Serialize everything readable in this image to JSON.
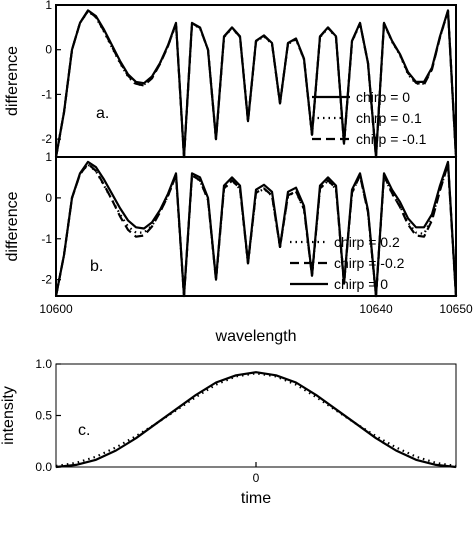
{
  "figure": {
    "colors": {
      "ink": "#000000",
      "background": "#ffffff"
    }
  },
  "chart_data": [
    {
      "type": "line",
      "panel_label": "a.",
      "xlabel": "",
      "ylabel": "difference",
      "xlim": [
        10600,
        10650
      ],
      "ylim": [
        -2.4,
        1.0
      ],
      "yticks": [
        1,
        0,
        -1,
        -2
      ],
      "x": [
        10600,
        10601,
        10602,
        10603,
        10604,
        10605,
        10606,
        10607,
        10608,
        10609,
        10610,
        10611,
        10612,
        10613,
        10614,
        10615,
        10616,
        10617,
        10618,
        10619,
        10620,
        10621,
        10622,
        10623,
        10624,
        10625,
        10626,
        10627,
        10628,
        10629,
        10630,
        10631,
        10632,
        10633,
        10634,
        10635,
        10636,
        10637,
        10638,
        10639,
        10640,
        10641,
        10642,
        10643,
        10644,
        10645,
        10646,
        10647,
        10648,
        10649,
        10650
      ],
      "legend": {
        "placement": "lower-right"
      },
      "series": [
        {
          "name": "chirp = 0",
          "dash": "solid",
          "values": [
            -2.4,
            -1.4,
            0.0,
            0.6,
            0.88,
            0.75,
            0.45,
            0.1,
            -0.25,
            -0.55,
            -0.72,
            -0.75,
            -0.6,
            -0.3,
            0.1,
            0.6,
            -2.4,
            0.6,
            0.5,
            0.0,
            -2.0,
            0.3,
            0.5,
            0.3,
            -1.6,
            0.2,
            0.32,
            0.15,
            -1.2,
            0.15,
            0.25,
            -0.2,
            -1.9,
            0.3,
            0.5,
            0.3,
            -2.1,
            0.2,
            0.6,
            -0.3,
            -2.4,
            0.6,
            0.2,
            -0.1,
            -0.5,
            -0.72,
            -0.72,
            -0.4,
            0.3,
            0.88,
            -2.4
          ]
        },
        {
          "name": "chirp = 0.1",
          "dash": "dotted",
          "values": [
            -2.4,
            -1.4,
            0.0,
            0.6,
            0.86,
            0.72,
            0.4,
            0.05,
            -0.3,
            -0.6,
            -0.78,
            -0.78,
            -0.62,
            -0.3,
            0.08,
            0.58,
            -2.4,
            0.58,
            0.48,
            0.0,
            -2.0,
            0.28,
            0.48,
            0.28,
            -1.6,
            0.18,
            0.3,
            0.13,
            -1.2,
            0.13,
            0.23,
            -0.22,
            -1.9,
            0.28,
            0.48,
            0.28,
            -2.1,
            0.18,
            0.58,
            -0.3,
            -2.4,
            0.58,
            0.18,
            -0.12,
            -0.55,
            -0.76,
            -0.76,
            -0.42,
            0.28,
            0.86,
            -2.4
          ]
        },
        {
          "name": "chirp = -0.1",
          "dash": "dashed",
          "values": [
            -2.4,
            -1.4,
            0.0,
            0.6,
            0.87,
            0.73,
            0.42,
            0.07,
            -0.28,
            -0.58,
            -0.76,
            -0.8,
            -0.64,
            -0.32,
            0.08,
            0.59,
            -2.4,
            0.59,
            0.49,
            0.0,
            -2.0,
            0.29,
            0.49,
            0.29,
            -1.6,
            0.19,
            0.31,
            0.14,
            -1.2,
            0.14,
            0.24,
            -0.21,
            -1.9,
            0.29,
            0.49,
            0.29,
            -2.1,
            0.19,
            0.59,
            -0.3,
            -2.4,
            0.59,
            0.19,
            -0.11,
            -0.52,
            -0.74,
            -0.78,
            -0.44,
            0.28,
            0.87,
            -2.4
          ]
        }
      ]
    },
    {
      "type": "line",
      "panel_label": "b.",
      "xlabel": "wavelength",
      "ylabel": "difference",
      "xlim": [
        10600,
        10650
      ],
      "ylim": [
        -2.4,
        1.0
      ],
      "yticks": [
        1,
        0,
        -1,
        -2
      ],
      "xticks": [
        10600,
        10640,
        10650
      ],
      "x": [
        10600,
        10601,
        10602,
        10603,
        10604,
        10605,
        10606,
        10607,
        10608,
        10609,
        10610,
        10611,
        10612,
        10613,
        10614,
        10615,
        10616,
        10617,
        10618,
        10619,
        10620,
        10621,
        10622,
        10623,
        10624,
        10625,
        10626,
        10627,
        10628,
        10629,
        10630,
        10631,
        10632,
        10633,
        10634,
        10635,
        10636,
        10637,
        10638,
        10639,
        10640,
        10641,
        10642,
        10643,
        10644,
        10645,
        10646,
        10647,
        10648,
        10649,
        10650
      ],
      "legend": {
        "placement": "lower-right"
      },
      "series": [
        {
          "name": "chirp = 0.2",
          "dash": "dotted",
          "values": [
            -2.4,
            -1.4,
            0.0,
            0.58,
            0.82,
            0.65,
            0.3,
            -0.05,
            -0.4,
            -0.7,
            -0.85,
            -0.85,
            -0.68,
            -0.35,
            0.05,
            0.55,
            -2.4,
            0.55,
            0.42,
            -0.05,
            -2.0,
            0.22,
            0.42,
            0.22,
            -1.6,
            0.12,
            0.22,
            0.05,
            -1.2,
            0.05,
            0.15,
            -0.28,
            -1.9,
            0.22,
            0.42,
            0.22,
            -2.1,
            0.12,
            0.55,
            -0.35,
            -2.4,
            0.55,
            0.1,
            -0.2,
            -0.6,
            -0.85,
            -0.88,
            -0.5,
            0.2,
            0.82,
            -2.4
          ]
        },
        {
          "name": "chirp = -0.2",
          "dash": "dashed",
          "values": [
            -2.4,
            -1.4,
            0.0,
            0.58,
            0.83,
            0.66,
            0.32,
            -0.05,
            -0.45,
            -0.78,
            -0.95,
            -0.92,
            -0.7,
            -0.35,
            0.05,
            0.55,
            -2.4,
            0.55,
            0.43,
            -0.05,
            -2.0,
            0.23,
            0.43,
            0.23,
            -1.6,
            0.13,
            0.23,
            0.06,
            -1.2,
            0.06,
            0.16,
            -0.27,
            -1.9,
            0.23,
            0.43,
            0.23,
            -2.1,
            0.13,
            0.55,
            -0.35,
            -2.4,
            0.55,
            0.12,
            -0.22,
            -0.65,
            -0.92,
            -0.95,
            -0.55,
            0.18,
            0.83,
            -2.4
          ]
        },
        {
          "name": "chirp = 0",
          "dash": "solid",
          "values": [
            -2.4,
            -1.4,
            0.0,
            0.6,
            0.88,
            0.75,
            0.45,
            0.1,
            -0.25,
            -0.55,
            -0.72,
            -0.75,
            -0.6,
            -0.3,
            0.1,
            0.6,
            -2.4,
            0.6,
            0.5,
            0.0,
            -2.0,
            0.3,
            0.5,
            0.3,
            -1.6,
            0.2,
            0.32,
            0.15,
            -1.2,
            0.15,
            0.25,
            -0.2,
            -1.9,
            0.3,
            0.5,
            0.3,
            -2.1,
            0.2,
            0.6,
            -0.3,
            -2.4,
            0.6,
            0.2,
            -0.1,
            -0.5,
            -0.72,
            -0.72,
            -0.4,
            0.3,
            0.88,
            -2.4
          ]
        }
      ]
    },
    {
      "type": "line",
      "panel_label": "c.",
      "xlabel": "time",
      "ylabel": "intensity",
      "xlim": [
        -2,
        2
      ],
      "ylim": [
        0.0,
        1.0
      ],
      "yticks": [
        1.0,
        0.5,
        0.0
      ],
      "xticks": [
        0
      ],
      "x": [
        -2.0,
        -1.8,
        -1.6,
        -1.4,
        -1.2,
        -1.0,
        -0.8,
        -0.6,
        -0.4,
        -0.2,
        0.0,
        0.2,
        0.4,
        0.6,
        0.8,
        1.0,
        1.2,
        1.4,
        1.6,
        1.8,
        2.0
      ],
      "series": [
        {
          "dash": "solid",
          "values": [
            0.0,
            0.02,
            0.07,
            0.16,
            0.28,
            0.42,
            0.56,
            0.7,
            0.82,
            0.89,
            0.92,
            0.89,
            0.82,
            0.7,
            0.56,
            0.42,
            0.28,
            0.16,
            0.07,
            0.02,
            0.0
          ]
        },
        {
          "dash": "dotted",
          "values": [
            0.01,
            0.04,
            0.1,
            0.19,
            0.3,
            0.42,
            0.55,
            0.68,
            0.8,
            0.88,
            0.91,
            0.88,
            0.8,
            0.68,
            0.55,
            0.42,
            0.3,
            0.19,
            0.1,
            0.04,
            0.01
          ]
        }
      ]
    }
  ]
}
